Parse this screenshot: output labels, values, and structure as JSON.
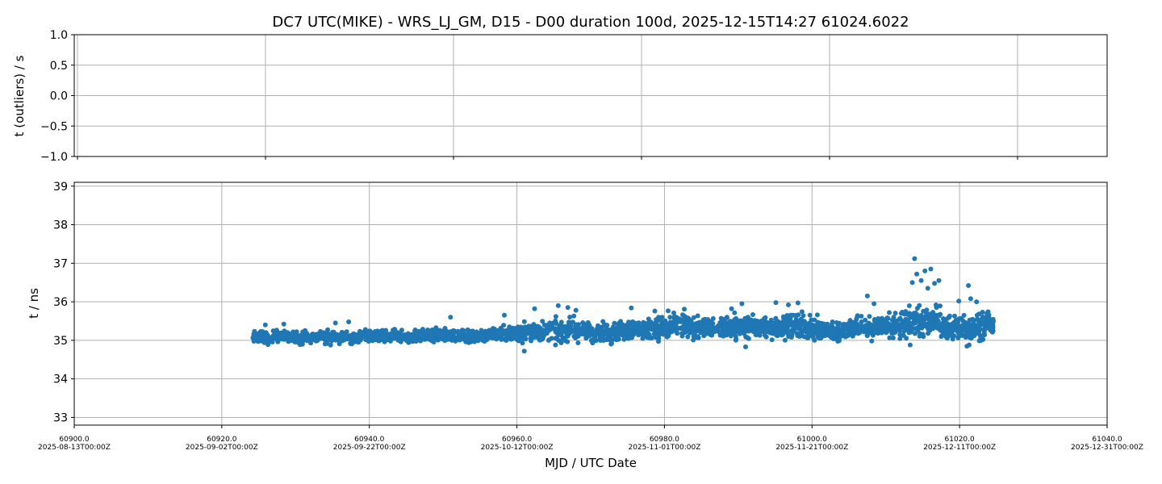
{
  "figure": {
    "title": "DC7 UTC(MIKE) - WRS_LJ_GM, D15 - D00 duration 100d, 2025-12-15T14:27 61024.6022"
  },
  "chart_data": [
    {
      "type": "scatter",
      "panel": "outliers",
      "ylabel": "t (outliers) / s",
      "ylim": [
        -1.0,
        1.0
      ],
      "yticks": [
        "1.0",
        "0.5",
        "0.0",
        "−0.5",
        "−1.0"
      ],
      "ytick_values": [
        1.0,
        0.5,
        0.0,
        -0.5,
        -1.0
      ],
      "xticks": [
        60900.5,
        60925.5,
        60950.5,
        60975.5,
        61000.5,
        61025.5
      ],
      "grid": true,
      "series": []
    },
    {
      "type": "scatter",
      "panel": "main",
      "xlabel": "MJD / UTC Date",
      "ylabel": "t / ns",
      "xlim": [
        60900.0,
        61040.0
      ],
      "ylim": [
        32.8,
        39.1
      ],
      "yticks": [
        "39",
        "38",
        "37",
        "36",
        "35",
        "34",
        "33"
      ],
      "ytick_values": [
        39,
        38,
        37,
        36,
        35,
        34,
        33
      ],
      "xticks": [
        {
          "value": 60900.0,
          "mjd": "60900.0",
          "date": "2025-08-13T00:00Z"
        },
        {
          "value": 60920.0,
          "mjd": "60920.0",
          "date": "2025-09-02T00:00Z"
        },
        {
          "value": 60940.0,
          "mjd": "60940.0",
          "date": "2025-09-22T00:00Z"
        },
        {
          "value": 60960.0,
          "mjd": "60960.0",
          "date": "2025-10-12T00:00Z"
        },
        {
          "value": 60980.0,
          "mjd": "60980.0",
          "date": "2025-11-01T00:00Z"
        },
        {
          "value": 61000.0,
          "mjd": "61000.0",
          "date": "2025-11-21T00:00Z"
        },
        {
          "value": 61020.0,
          "mjd": "61020.0",
          "date": "2025-12-11T00:00Z"
        },
        {
          "value": 61040.0,
          "mjd": "61040.0",
          "date": "2025-12-31T00:00Z"
        }
      ],
      "grid": true,
      "series": [
        {
          "color": "#1f77b4",
          "x": [
            60924.6,
            60925.5,
            60926.5,
            60927.5,
            60928.5,
            60929.5,
            60930.5,
            60931.5,
            60932.5,
            60933.5,
            60934.5,
            60935.5,
            60936.5,
            60937.5,
            60938.5,
            60939.5,
            60940.5,
            60941.5,
            60942.5,
            60943.5,
            60944.5,
            60945.5,
            60946.5,
            60947.5,
            60948.5,
            60949.5,
            60950.5,
            60951.5,
            60952.5,
            60953.5,
            60954.5,
            60955.5,
            60956.5,
            60957.5,
            60958.5,
            60959.5,
            60960.5,
            60961.5,
            60962.5,
            60963.5,
            60964.5,
            60965.5,
            60966.5,
            60967.5,
            60968.5,
            60969.5,
            60970.5,
            60971.5,
            60972.5,
            60973.5,
            60974.5,
            60975.5,
            60976.5,
            60977.5,
            60978.5,
            60979.5,
            60980.5,
            60981.5,
            60982.5,
            60983.5,
            60984.5,
            60985.5,
            60986.5,
            60987.5,
            60988.5,
            60989.5,
            60990.5,
            60991.5,
            60992.5,
            60993.5,
            60994.5,
            60995.5,
            60996.5,
            60997.5,
            60998.5,
            60999.5,
            61000.5,
            61001.5,
            61002.5,
            61003.5,
            61004.5,
            61005.5,
            61006.5,
            61007.5,
            61008.5,
            61009.5,
            61010.5,
            61011.5,
            61012.5,
            61013.5,
            61014.5,
            61015.5,
            61016.5,
            61017.5,
            61018.5,
            61019.5,
            61020.5,
            61021.5,
            61022.5,
            61023.5,
            61024.5
          ],
          "y": [
            35.08,
            35.1,
            35.07,
            35.11,
            35.09,
            35.12,
            35.06,
            35.1,
            35.08,
            35.11,
            35.07,
            35.09,
            35.1,
            35.06,
            35.08,
            35.12,
            35.1,
            35.09,
            35.07,
            35.11,
            35.1,
            35.08,
            35.12,
            35.13,
            35.11,
            35.15,
            35.14,
            35.12,
            35.13,
            35.11,
            35.1,
            35.14,
            35.16,
            35.18,
            35.2,
            35.17,
            35.16,
            35.22,
            35.2,
            35.24,
            35.26,
            35.23,
            35.25,
            35.28,
            35.24,
            35.22,
            35.2,
            35.21,
            35.19,
            35.24,
            35.26,
            35.25,
            35.28,
            35.24,
            35.3,
            35.33,
            35.36,
            35.38,
            35.4,
            35.35,
            35.37,
            35.33,
            35.3,
            35.34,
            35.36,
            35.38,
            35.32,
            35.35,
            35.34,
            35.33,
            35.31,
            35.36,
            35.38,
            35.4,
            35.35,
            35.3,
            35.28,
            35.25,
            35.24,
            35.22,
            35.28,
            35.34,
            35.36,
            35.32,
            35.3,
            35.36,
            35.35,
            35.38,
            35.42,
            35.46,
            35.5,
            35.48,
            35.44,
            35.4,
            35.34,
            35.3,
            35.32,
            35.35,
            35.38,
            35.4,
            35.37
          ],
          "spread": [
            0.12,
            0.13,
            0.14,
            0.13,
            0.12,
            0.13,
            0.14,
            0.13,
            0.12,
            0.13,
            0.14,
            0.13,
            0.12,
            0.13,
            0.14,
            0.13,
            0.12,
            0.13,
            0.14,
            0.13,
            0.12,
            0.13,
            0.14,
            0.13,
            0.12,
            0.13,
            0.14,
            0.13,
            0.12,
            0.13,
            0.14,
            0.15,
            0.16,
            0.17,
            0.18,
            0.19,
            0.2,
            0.21,
            0.22,
            0.22,
            0.23,
            0.24,
            0.24,
            0.23,
            0.22,
            0.21,
            0.2,
            0.21,
            0.22,
            0.23,
            0.22,
            0.21,
            0.22,
            0.23,
            0.24,
            0.25,
            0.26,
            0.27,
            0.26,
            0.25,
            0.24,
            0.23,
            0.24,
            0.25,
            0.26,
            0.27,
            0.26,
            0.25,
            0.24,
            0.23,
            0.24,
            0.25,
            0.26,
            0.27,
            0.26,
            0.25,
            0.24,
            0.22,
            0.21,
            0.2,
            0.21,
            0.22,
            0.23,
            0.24,
            0.25,
            0.26,
            0.27,
            0.28,
            0.3,
            0.32,
            0.34,
            0.33,
            0.32,
            0.3,
            0.28,
            0.27,
            0.28,
            0.29,
            0.3,
            0.3,
            0.28
          ],
          "outliers_x": [
            60925.9,
            60928.4,
            60935.4,
            60937.2,
            60951.0,
            60958.3,
            60962.4,
            60965.6,
            60966.9,
            60968.0,
            60975.5,
            60978.7,
            60989.1,
            60990.5,
            60995.1,
            60996.8,
            60998.1,
            61007.5,
            61008.4,
            61013.6,
            61013.9,
            61014.2,
            61014.8,
            61015.3,
            61015.7,
            61016.1,
            61016.6,
            61017.2,
            61019.9,
            61021.2,
            61021.5,
            61022.3,
            61021.0,
            61021.3,
            60961.0,
            60991.0,
            61013.3
          ],
          "outliers_y": [
            35.4,
            35.42,
            35.45,
            35.48,
            35.6,
            35.65,
            35.82,
            35.9,
            35.85,
            35.78,
            35.84,
            35.76,
            35.82,
            35.95,
            35.98,
            35.92,
            35.97,
            36.15,
            35.95,
            36.5,
            37.12,
            36.72,
            36.55,
            36.8,
            36.35,
            36.85,
            36.48,
            36.55,
            36.02,
            36.42,
            36.08,
            36.0,
            34.85,
            34.88,
            34.72,
            34.83,
            34.88
          ]
        }
      ]
    }
  ]
}
